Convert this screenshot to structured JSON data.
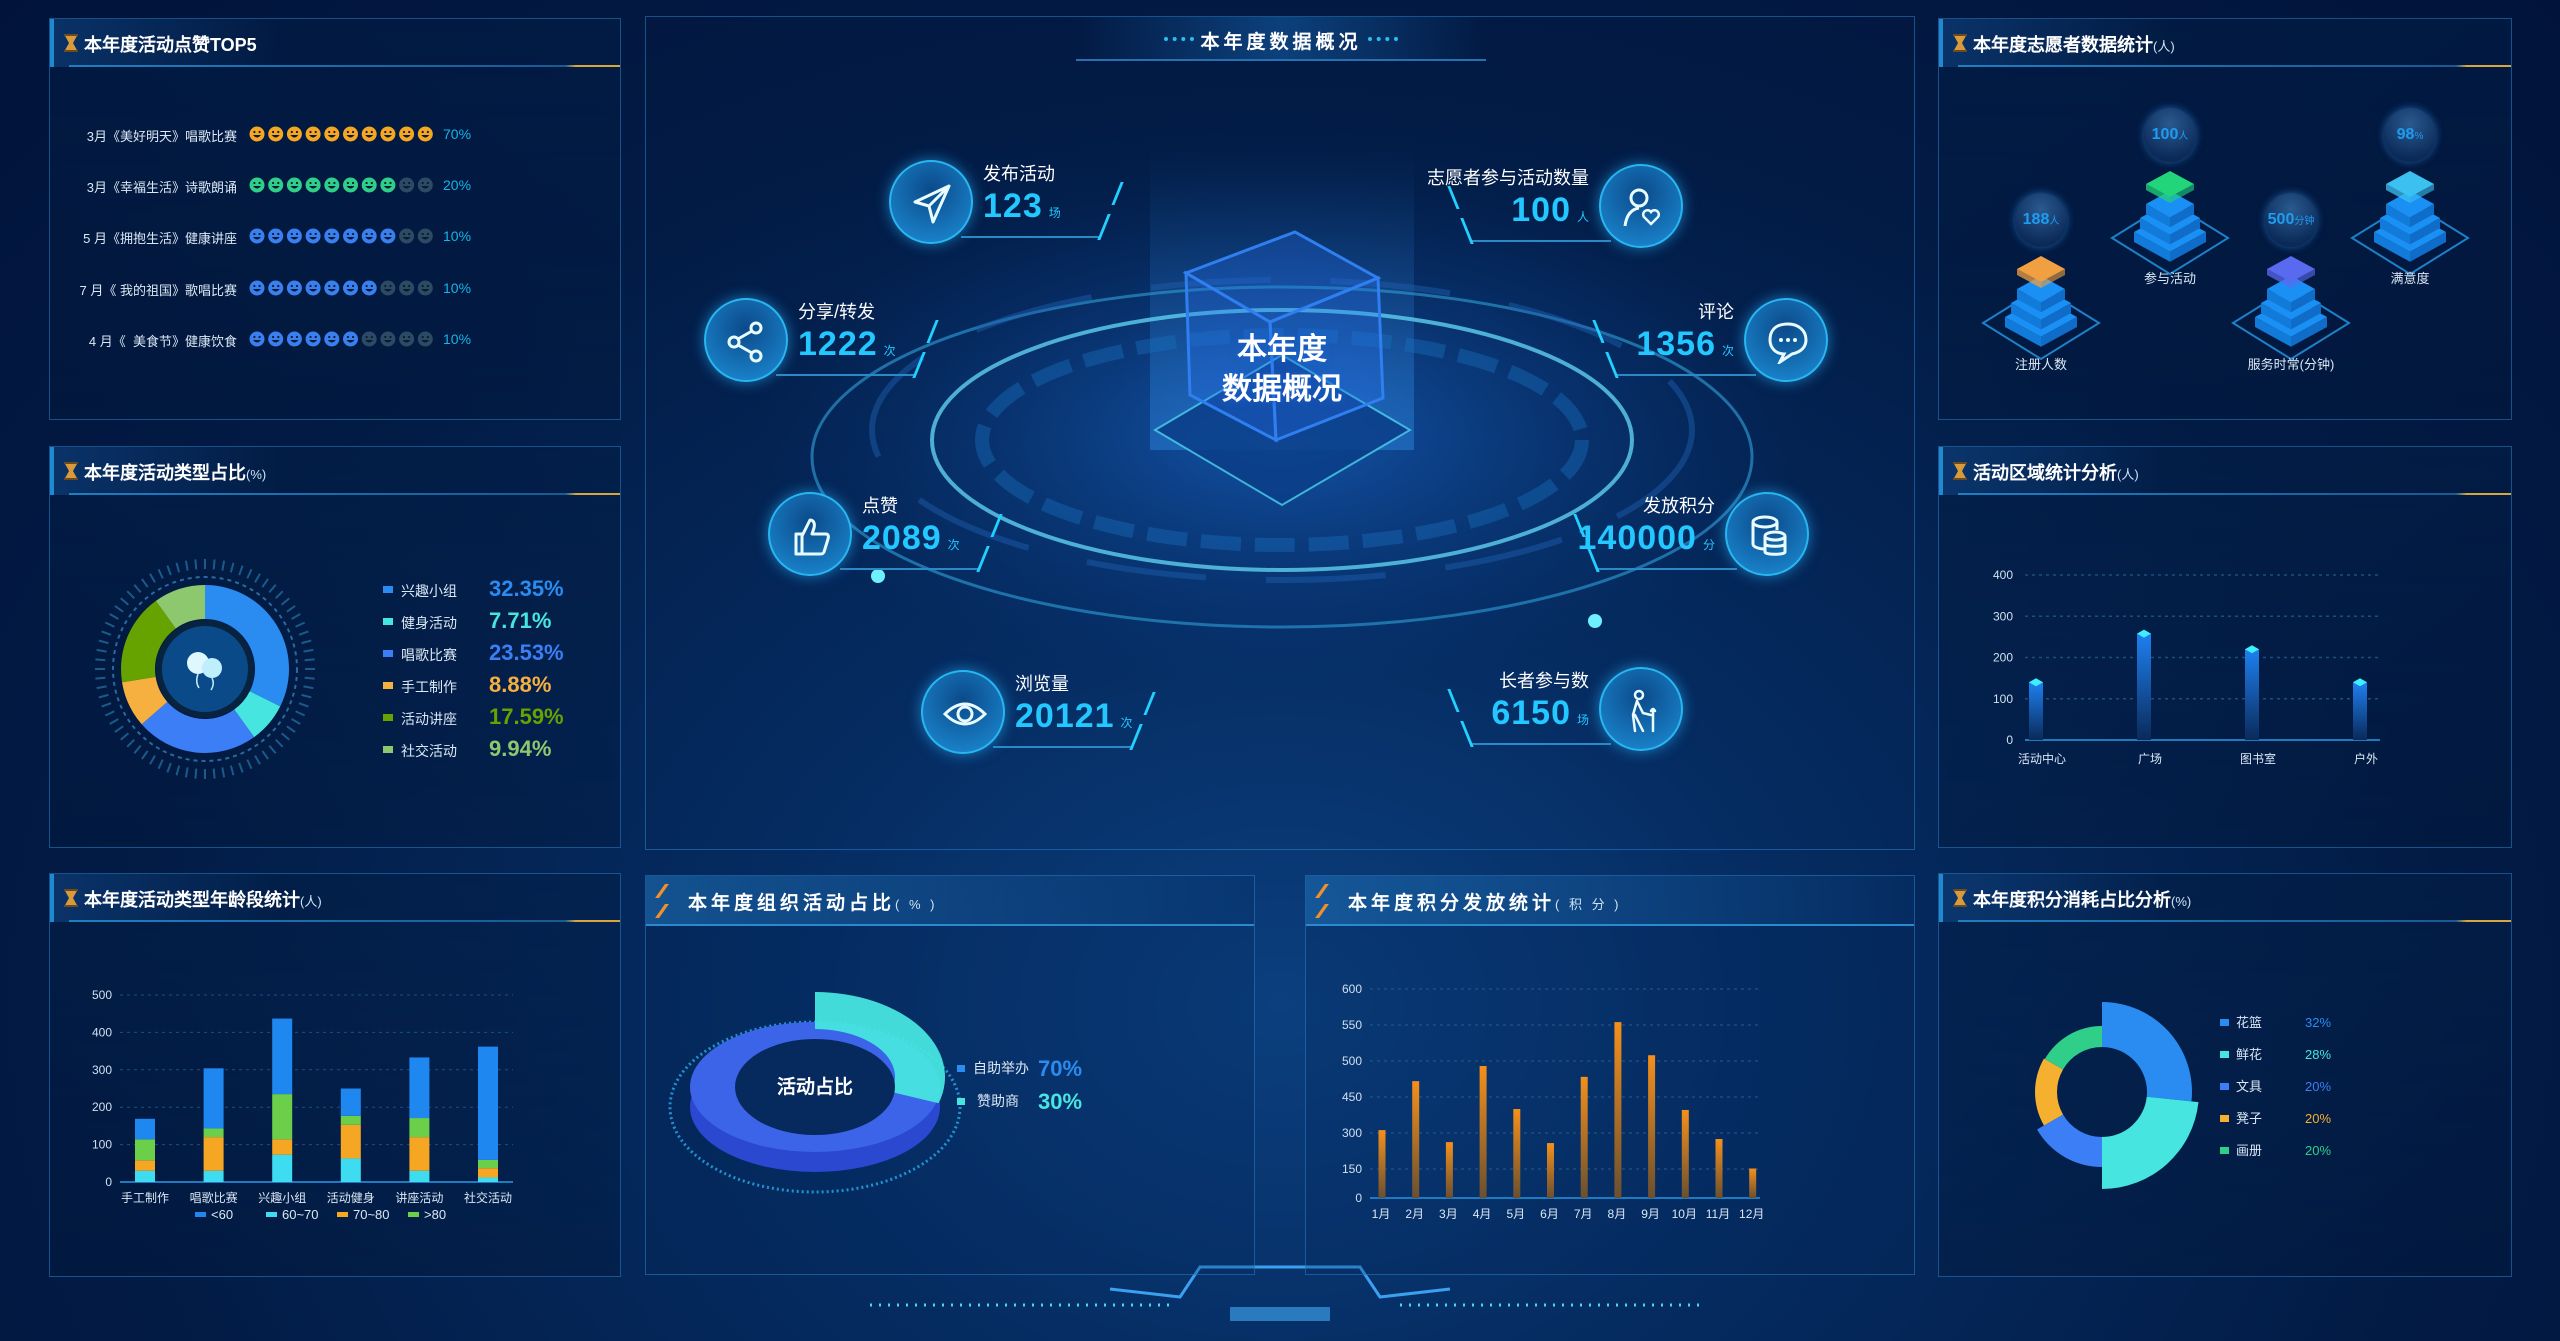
{
  "header": {
    "title": "本年度数据概况"
  },
  "likes_top5": {
    "title": "本年度活动点赞TOP5",
    "rows": [
      {
        "label": "3月《美好明天》唱歌比赛",
        "filled": 10,
        "total": 10,
        "color": "#f5a623",
        "pct": "70%"
      },
      {
        "label": "3月《幸福生活》诗歌朗诵",
        "filled": 8,
        "total": 10,
        "color": "#2fcf8a",
        "pct": "20%"
      },
      {
        "label": "5 月《拥抱生活》健康讲座",
        "filled": 8,
        "total": 10,
        "color": "#3a7ff0",
        "pct": "10%"
      },
      {
        "label": "7 月《 我的祖国》歌唱比赛",
        "filled": 7,
        "total": 10,
        "color": "#3a7ff0",
        "pct": "10%"
      },
      {
        "label": "4 月《  美食节》健康饮食",
        "filled": 6,
        "total": 10,
        "color": "#3a7ff0",
        "pct": "10%"
      }
    ],
    "empty_color": "#2c4a64"
  },
  "activity_types": {
    "title": "本年度活动类型占比",
    "unit": "(%)",
    "center_icon": "balloons-icon"
  },
  "age_stats": {
    "title": "本年度活动类型年龄段统计",
    "unit": "(人)"
  },
  "overview": {
    "center_label_1": "本年度",
    "center_label_2": "数据概况",
    "stats": [
      {
        "label": "发布活动",
        "value": "123",
        "unit": "场",
        "icon": "paper-plane-icon",
        "side": "left"
      },
      {
        "label": "志愿者参与活动数量",
        "value": "100",
        "unit": "人",
        "icon": "user-heart-icon",
        "side": "right"
      },
      {
        "label": "分享/转发",
        "value": "1222",
        "unit": "次",
        "icon": "share-icon",
        "side": "left"
      },
      {
        "label": "评论",
        "value": "1356",
        "unit": "次",
        "icon": "chat-icon",
        "side": "right"
      },
      {
        "label": "点赞",
        "value": "2089",
        "unit": "次",
        "icon": "thumbs-up-icon",
        "side": "left"
      },
      {
        "label": "发放积分",
        "value": "140000",
        "unit": "分",
        "icon": "coins-icon",
        "side": "right"
      },
      {
        "label": "浏览量",
        "value": "20121",
        "unit": "次",
        "icon": "eye-icon",
        "side": "left"
      },
      {
        "label": "长者参与数",
        "value": "6150",
        "unit": "场",
        "icon": "elder-icon",
        "side": "right"
      }
    ]
  },
  "org_activity": {
    "title": "本年度组织活动占比",
    "unit": "( % )",
    "center_label": "活动占比"
  },
  "points_issue": {
    "title": "本年度积分发放统计",
    "unit": "( 积 分 )"
  },
  "volunteers": {
    "title": "本年度志愿者数据统计",
    "unit": "(人)",
    "items": [
      {
        "label": "注册人数",
        "value": "188",
        "unit": "人",
        "color": "#f0a040"
      },
      {
        "label": "参与活动",
        "value": "100",
        "unit": "人",
        "color": "#22d47a"
      },
      {
        "label": "服务时常(分钟)",
        "value": "500",
        "unit": "分钟",
        "color": "#5a6af0"
      },
      {
        "label": "满意度",
        "value": "98",
        "unit": "%",
        "color": "#3cc0f0"
      }
    ]
  },
  "region": {
    "title": "活动区域统计分析",
    "unit": "(人)"
  },
  "consumption": {
    "title": "本年度积分消耗占比分析",
    "unit": "(%)"
  },
  "chart_data": [
    {
      "type": "pie",
      "variant": "donut",
      "items": [
        {
          "name": "兴趣小组",
          "value": 32.35,
          "label": "32.35%",
          "color": "#2a8cf0"
        },
        {
          "name": "健身活动",
          "value": 7.71,
          "label": "7.71%",
          "color": "#47e5e0"
        },
        {
          "name": "唱歌比赛",
          "value": 23.53,
          "label": "23.53%",
          "color": "#3b7ef5"
        },
        {
          "name": "手工制作",
          "value": 8.88,
          "label": "8.88%",
          "color": "#f5b040"
        },
        {
          "name": "活动讲座",
          "value": 17.59,
          "label": "17.59%",
          "color": "#66a300"
        },
        {
          "name": "社交活动",
          "value": 9.94,
          "label": "9.94%",
          "color": "#8ec86e"
        }
      ],
      "legend": "right"
    },
    {
      "type": "bar",
      "stacked": true,
      "categories": [
        "手工制作",
        "唱歌比赛",
        "兴趣小组",
        "活动健身",
        "讲座活动",
        "社交活动"
      ],
      "series": [
        {
          "name": "60~70",
          "values": [
            30,
            30,
            73,
            63,
            30,
            12
          ],
          "color": "#3ddcf0"
        },
        {
          "name": "70~80",
          "values": [
            28,
            90,
            41,
            90,
            90,
            25
          ],
          "color": "#f5a623"
        },
        {
          "name": ">80",
          "values": [
            56,
            23,
            121,
            24,
            51,
            22
          ],
          "color": "#6ccf4a"
        },
        {
          "name": "<60",
          "values": [
            55,
            161,
            202,
            73,
            162,
            303
          ],
          "color": "#1e88f0"
        }
      ],
      "legend_order": [
        "<60",
        "60~70",
        "70~80",
        ">80"
      ],
      "yticks": [
        0,
        100,
        200,
        300,
        400,
        500
      ],
      "ylim": [
        0,
        500
      ],
      "grid": true,
      "legend": "bottom"
    },
    {
      "type": "bar",
      "categories": [
        "活动中心",
        "广场",
        "图书室",
        "户外"
      ],
      "values": [
        140,
        258,
        220,
        140
      ],
      "yticks": [
        0,
        100,
        200,
        300,
        400
      ],
      "ylim": [
        0,
        400
      ],
      "grid": true
    },
    {
      "type": "pie",
      "variant": "3d-donut",
      "items": [
        {
          "name": "自助举办",
          "value": 70,
          "label": "70%",
          "color": "#3a6cf0"
        },
        {
          "name": "赞助商",
          "value": 30,
          "label": "30%",
          "color": "#47e5e0"
        }
      ],
      "legend": "right"
    },
    {
      "type": "bar",
      "categories": [
        "1月",
        "2月",
        "3月",
        "4月",
        "5月",
        "6月",
        "7月",
        "8月",
        "9月",
        "10月",
        "11月",
        "12月"
      ],
      "values": [
        312,
        472,
        262,
        493,
        400,
        258,
        478,
        554,
        508,
        396,
        275,
        152
      ],
      "yticks": [
        0,
        150,
        300,
        450,
        500,
        550,
        600
      ],
      "grid": true,
      "color": "#f0901a"
    },
    {
      "type": "pie",
      "variant": "rose",
      "items": [
        {
          "name": "花篮",
          "value": 32,
          "label": "32%",
          "color": "#2a8cf0"
        },
        {
          "name": "鲜花",
          "value": 28,
          "label": "28%",
          "color": "#47e5e0"
        },
        {
          "name": "文具",
          "value": 20,
          "label": "20%",
          "color": "#3b7ef5"
        },
        {
          "name": "凳子",
          "value": 20,
          "label": "20%",
          "color": "#f5b030"
        },
        {
          "name": "画册",
          "value": 20,
          "label": "20%",
          "color": "#2fcf8a"
        }
      ],
      "legend": "right"
    }
  ]
}
